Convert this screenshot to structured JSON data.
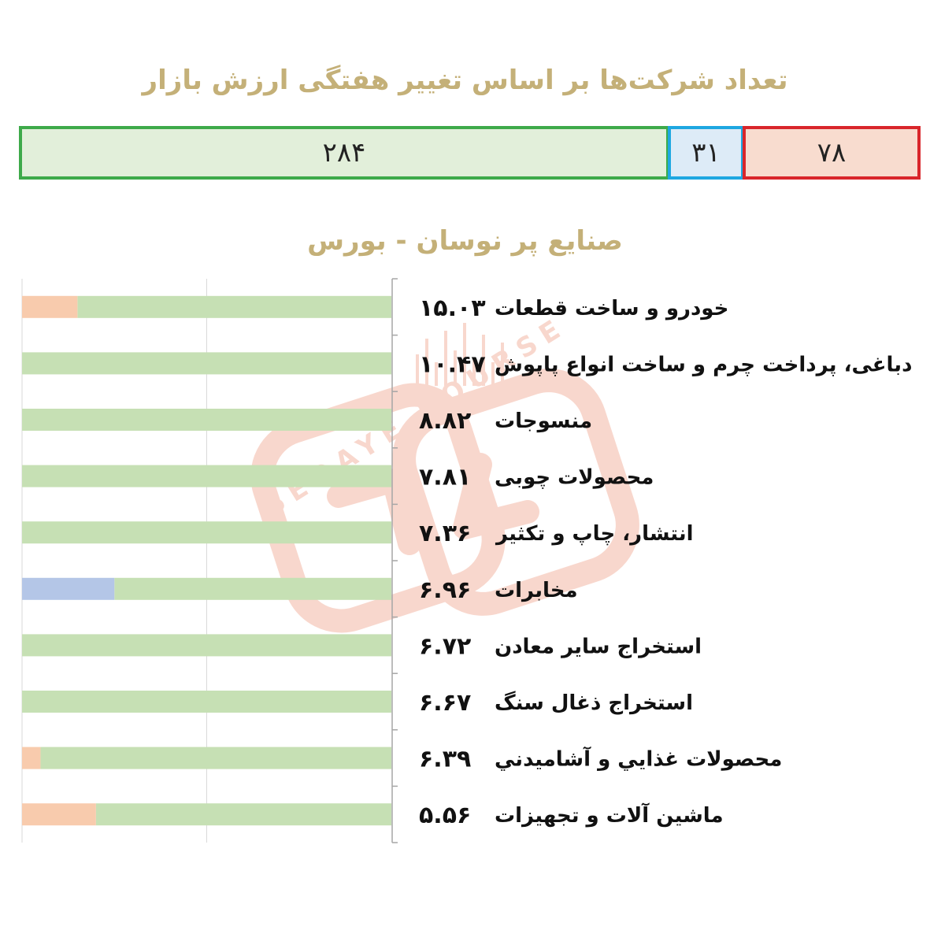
{
  "header": {
    "title": "تعداد شرکت‌ها بر اساس تغییر هفتگی ارزش بازار",
    "counts": [
      {
        "key": "green",
        "value": "۲۸۴",
        "color": "#3eaa4a"
      },
      {
        "key": "blue",
        "value": "۳۱",
        "color": "#1ea7e1"
      },
      {
        "key": "red",
        "value": "۷۸",
        "color": "#d9262b"
      }
    ]
  },
  "chart_data": {
    "type": "bar",
    "title": "صنایع پر نوسان - بورس",
    "categories": [
      "خودرو و ساخت قطعات",
      "دباغی، پرداخت چرم و ساخت انواع پاپوش",
      "منسوجات",
      "محصولات چوبی",
      "انتشار، چاپ و تکثیر",
      "مخابرات",
      "استخراج سایر معادن",
      "استخراج ذغال سنگ",
      "محصولات غذايي و آشاميدني",
      "ماشین آلات و تجهیزات"
    ],
    "value_labels": [
      "۱۵.۰۳",
      "۱۰.۴۷",
      "۸.۸۲",
      "۷.۸۱",
      "۷.۳۶",
      "۶.۹۶",
      "۶.۷۲",
      "۶.۶۷",
      "۶.۳۹",
      "۵.۵۶"
    ],
    "stack_unit": "percent",
    "series": [
      {
        "color": "#c6e0b4",
        "values": [
          85,
          100,
          100,
          100,
          100,
          75,
          100,
          100,
          95,
          80
        ]
      },
      {
        "color": "#b4c6e7",
        "values": [
          0,
          0,
          0,
          0,
          0,
          25,
          0,
          0,
          0,
          0
        ]
      },
      {
        "color": "#f8cbad",
        "values": [
          15,
          0,
          0,
          0,
          0,
          0,
          0,
          0,
          5,
          20
        ]
      }
    ],
    "xlim": [
      0,
      100
    ],
    "grid": true
  },
  "watermark": {
    "text": "SEDAYE BOURSE",
    "color": "#e8734f"
  }
}
